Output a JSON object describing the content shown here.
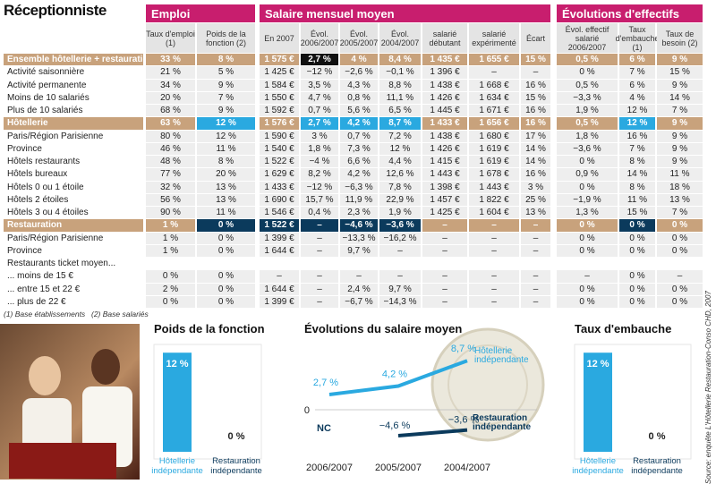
{
  "header": {
    "title": "Réceptionniste"
  },
  "table": {
    "groups": [
      "Emploi",
      "Salaire mensuel moyen",
      "Évolutions d'effectifs"
    ],
    "columns": [
      "Taux d'emploi (1)",
      "Poids de la fonction (2)",
      "En 2007",
      "Évol. 2006/2007",
      "Évol. 2005/2007",
      "Évol. 2004/2007",
      "salarié débutant",
      "salarié expérimenté",
      "Écart",
      "Évol. effectif salarié 2006/2007",
      "Taux d'embauche (1)",
      "Taux de besoin (2)"
    ],
    "rows": [
      {
        "label": "Ensemble hôtellerie + restauration",
        "cells": [
          "33 %",
          "8 %",
          "1 575 €",
          "2,7 %",
          "4 %",
          "8,4 %",
          "1 435 €",
          "1 655 €",
          "15 %",
          "0,5 %",
          "6 %",
          "9 %"
        ]
      },
      {
        "label": "Activité saisonnière",
        "cells": [
          "21 %",
          "5 %",
          "1 425 €",
          "−12 %",
          "−2,6 %",
          "−0,1 %",
          "1 396 €",
          "–",
          "–",
          "0 %",
          "7 %",
          "15 %"
        ]
      },
      {
        "label": "Activité permanente",
        "cells": [
          "34 %",
          "9 %",
          "1 584 €",
          "3,5 %",
          "4,3 %",
          "8,8 %",
          "1 438 €",
          "1 668 €",
          "16 %",
          "0,5 %",
          "6 %",
          "9 %"
        ]
      },
      {
        "label": "Moins de 10 salariés",
        "cells": [
          "20 %",
          "7 %",
          "1 550 €",
          "4,7 %",
          "0,8 %",
          "11,1 %",
          "1 426 €",
          "1 634 €",
          "15 %",
          "−3,3 %",
          "4 %",
          "14 %"
        ]
      },
      {
        "label": "Plus de 10 salariés",
        "cells": [
          "68 %",
          "9 %",
          "1 592 €",
          "0,7 %",
          "5,6 %",
          "6,5 %",
          "1 445 €",
          "1 671 €",
          "16 %",
          "1,9 %",
          "12 %",
          "7 %"
        ]
      },
      {
        "label": "Hôtellerie",
        "cells": [
          "63 %",
          "12 %",
          "1 576 €",
          "2,7 %",
          "4,2 %",
          "8,7 %",
          "1 433 €",
          "1 656 €",
          "16 %",
          "0,5 %",
          "12 %",
          "9 %"
        ]
      },
      {
        "label": "Paris/Région Parisienne",
        "cells": [
          "80 %",
          "12 %",
          "1 590 €",
          "3 %",
          "0,7 %",
          "7,2 %",
          "1 438 €",
          "1 680 €",
          "17 %",
          "1,8 %",
          "16 %",
          "9 %"
        ]
      },
      {
        "label": "Province",
        "cells": [
          "46 %",
          "11 %",
          "1 540 €",
          "1,8 %",
          "7,3 %",
          "12 %",
          "1 426 €",
          "1 619 €",
          "14 %",
          "−3,6 %",
          "7 %",
          "9 %"
        ]
      },
      {
        "label": "Hôtels restaurants",
        "cells": [
          "48 %",
          "8 %",
          "1 522 €",
          "−4 %",
          "6,6 %",
          "4,4 %",
          "1 415 €",
          "1 619 €",
          "14 %",
          "0 %",
          "8 %",
          "9 %"
        ]
      },
      {
        "label": "Hôtels bureaux",
        "cells": [
          "77 %",
          "20 %",
          "1 629 €",
          "8,2 %",
          "4,2 %",
          "12,6 %",
          "1 443 €",
          "1 678 €",
          "16 %",
          "0,9 %",
          "14 %",
          "11 %"
        ]
      },
      {
        "label": "Hôtels 0 ou 1 étoile",
        "cells": [
          "32 %",
          "13 %",
          "1 433 €",
          "−12 %",
          "−6,3 %",
          "7,8 %",
          "1 398 €",
          "1 443 €",
          "3 %",
          "0 %",
          "8 %",
          "18 %"
        ]
      },
      {
        "label": "Hôtels 2 étoiles",
        "cells": [
          "56 %",
          "13 %",
          "1 690 €",
          "15,7 %",
          "11,9 %",
          "22,9 %",
          "1 457 €",
          "1 822 €",
          "25 %",
          "−1,9 %",
          "11 %",
          "13 %"
        ]
      },
      {
        "label": "Hôtels 3 ou 4 étoiles",
        "cells": [
          "90 %",
          "11 %",
          "1 546 €",
          "0,4 %",
          "2,3 %",
          "1,9 %",
          "1 425 €",
          "1 604 €",
          "13 %",
          "1,3 %",
          "15 %",
          "7 %"
        ]
      },
      {
        "label": "Restauration",
        "cells": [
          "1 %",
          "0 %",
          "1 522 €",
          "–",
          "−4,6 %",
          "−3,6 %",
          "–",
          "–",
          "–",
          "0 %",
          "0 %",
          "0 %"
        ]
      },
      {
        "label": "Paris/Région Parisienne",
        "cells": [
          "1 %",
          "0 %",
          "1 399 €",
          "–",
          "−13,3 %",
          "−16,2 %",
          "–",
          "–",
          "–",
          "0 %",
          "0 %",
          "0 %"
        ]
      },
      {
        "label": "Province",
        "cells": [
          "1 %",
          "0 %",
          "1 644 €",
          "–",
          "9,7 %",
          "–",
          "–",
          "–",
          "–",
          "0 %",
          "0 %",
          "0 %"
        ]
      },
      {
        "label": "Restaurants ticket moyen..."
      },
      {
        "label": "... moins de 15 €",
        "cells": [
          "0 %",
          "0 %",
          "–",
          "–",
          "–",
          "–",
          "–",
          "–",
          "–",
          "–",
          "0 %",
          "–"
        ]
      },
      {
        "label": "... entre 15 et 22 €",
        "cells": [
          "2 %",
          "0 %",
          "1 644 €",
          "–",
          "2,4 %",
          "9,7 %",
          "–",
          "–",
          "–",
          "0 %",
          "0 %",
          "0 %"
        ]
      },
      {
        "label": "... plus de 22 €",
        "cells": [
          "0 %",
          "0 %",
          "1 399 €",
          "–",
          "−6,7 %",
          "−14,3 %",
          "–",
          "–",
          "–",
          "0 %",
          "0 %",
          "0 %"
        ]
      }
    ]
  },
  "footnotes": [
    "(1) Base établissements",
    "(2) Base salariés"
  ],
  "source": "Source: enquête L'Hôtellerie Restauration-Conso CHD, 2007",
  "chart_data": [
    {
      "type": "bar",
      "title": "Poids de la fonction",
      "categories": [
        "Hôtellerie indépendante",
        "Restauration indépendante"
      ],
      "values": [
        12,
        0
      ],
      "value_labels": [
        "12 %",
        "0 %"
      ],
      "colors": [
        "#2aa9e0",
        "#0b3a5c"
      ],
      "ylim": [
        0,
        13
      ]
    },
    {
      "type": "line",
      "title": "Évolutions du salaire moyen",
      "categories": [
        "2006/2007",
        "2005/2007",
        "2004/2007"
      ],
      "ylim": [
        -6,
        10
      ],
      "yticks": [
        0
      ],
      "series": [
        {
          "name": "Hôtellerie indépendante",
          "color": "#2aa9e0",
          "values": [
            2.7,
            4.2,
            8.7
          ],
          "value_labels": [
            "2,7 %",
            "4,2 %",
            "8,7 %"
          ]
        },
        {
          "name": "Restauration indépendante",
          "color": "#0b3a5c",
          "values": [
            null,
            -4.6,
            -3.6
          ],
          "value_labels": [
            "NC",
            "−4,6 %",
            "−3,6 %"
          ]
        }
      ]
    },
    {
      "type": "bar",
      "title": "Taux d'embauche",
      "categories": [
        "Hôtellerie indépendante",
        "Restauration indépendante"
      ],
      "values": [
        12,
        0
      ],
      "value_labels": [
        "12 %",
        "0 %"
      ],
      "colors": [
        "#2aa9e0",
        "#0b3a5c"
      ],
      "ylim": [
        0,
        13
      ]
    }
  ]
}
